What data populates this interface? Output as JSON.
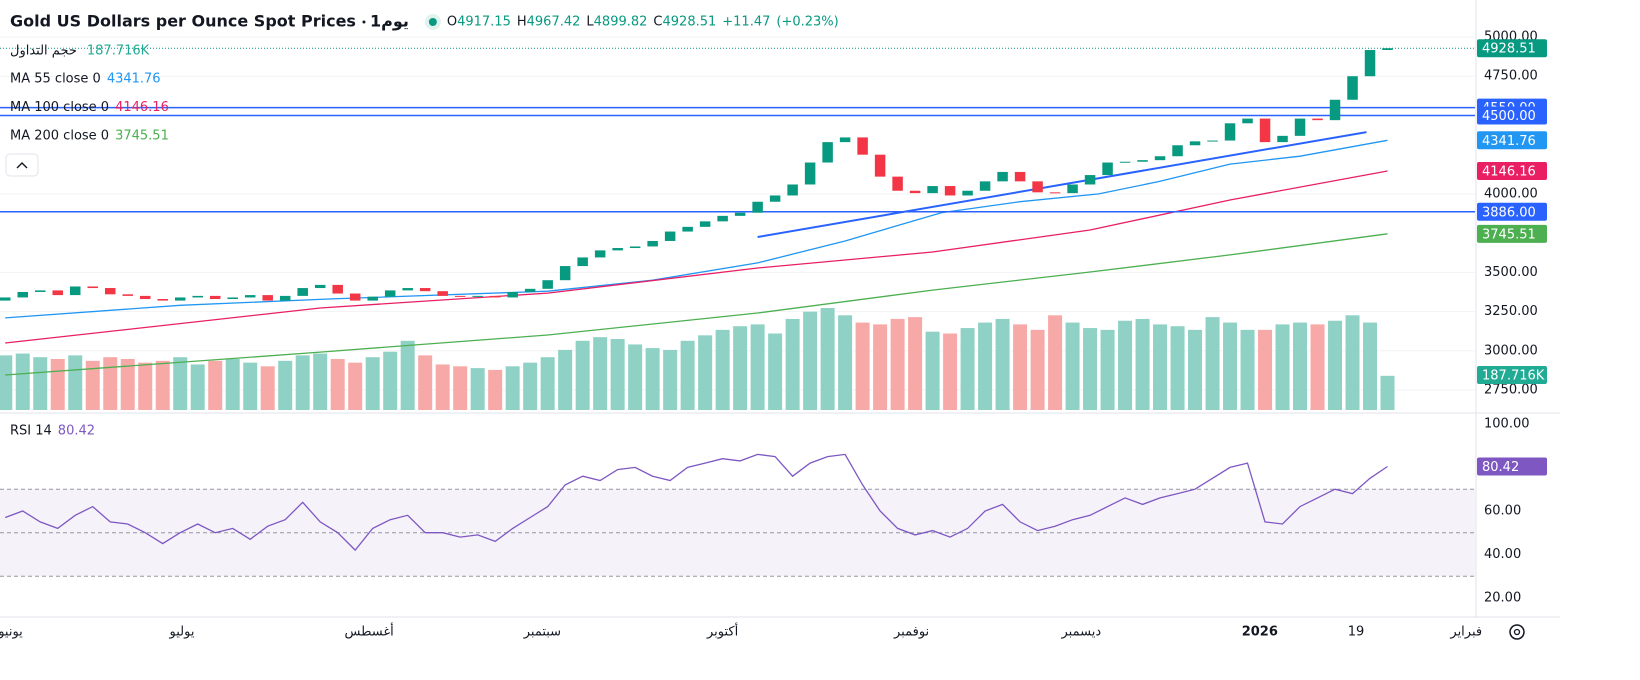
{
  "chart_data": {
    "type": "candlestick",
    "title": "Gold US Dollars per Ounce Spot Prices",
    "interval": "1يوم",
    "header": {
      "o": "O",
      "h": "H",
      "l": "L",
      "c": "C"
    },
    "last_high": 4967.42,
    "last_low": 4899.82,
    "change": {
      "value": 11.47,
      "label": "+11.47"
    },
    "change_pct": {
      "value": 0.23,
      "label": "(+0.23%)"
    },
    "xlim": [
      -0.3,
      84
    ],
    "xticks": [
      {
        "value": 0.3,
        "label": "يونيو"
      },
      {
        "value": 10.1,
        "label": "يوليو"
      },
      {
        "value": 20.8,
        "label": "أغسطس"
      },
      {
        "value": 30.7,
        "label": "سبتمبر"
      },
      {
        "value": 41,
        "label": "أكتوبر"
      },
      {
        "value": 51.8,
        "label": "نوفمبر"
      },
      {
        "value": 61.5,
        "label": "ديسمبر"
      },
      {
        "value": 71.7,
        "label": "2026",
        "bold": true
      },
      {
        "value": 77.2,
        "label": "19"
      },
      {
        "value": 83.5,
        "label": "فبراير"
      }
    ],
    "ylim": [
      2622.7,
      5235.8
    ],
    "yticks": [
      {
        "value": 5000,
        "label": "5000.00"
      },
      {
        "value": 4750,
        "label": "4750.00"
      },
      {
        "value": 4000,
        "label": "4000.00"
      },
      {
        "value": 3500,
        "label": "3500.00"
      },
      {
        "value": 3250,
        "label": "3250.00"
      },
      {
        "value": 3000,
        "label": "3000.00"
      },
      {
        "value": 2750,
        "label": "2750.00"
      }
    ],
    "grid": true,
    "candles": {
      "up_color": "#089981",
      "down_color": "#f23645",
      "open": [
        3320,
        3340,
        3375,
        3385,
        3355,
        3410,
        3400,
        3360,
        3350,
        3330,
        3320,
        3340,
        3350,
        3330,
        3340,
        3355,
        3320,
        3350,
        3400,
        3420,
        3365,
        3320,
        3345,
        3385,
        3400,
        3380,
        3350,
        3345,
        3350,
        3340,
        3375,
        3395,
        3450,
        3540,
        3595,
        3640,
        3655,
        3665,
        3700,
        3760,
        3790,
        3825,
        3860,
        3880,
        3950,
        3990,
        4060,
        4200,
        4330,
        4360,
        4250,
        4110,
        4020,
        4005,
        4050,
        3990,
        4020,
        4080,
        4140,
        4080,
        4010,
        4005,
        4060,
        4120,
        4200,
        4205,
        4215,
        4240,
        4310,
        4335,
        4340,
        4450,
        4480,
        4330,
        4370,
        4480,
        4470,
        4600,
        4750,
        4917.15
      ],
      "close": [
        3340,
        3375,
        3385,
        3355,
        3410,
        3400,
        3360,
        3350,
        3330,
        3320,
        3340,
        3350,
        3330,
        3340,
        3355,
        3320,
        3350,
        3400,
        3420,
        3365,
        3320,
        3345,
        3385,
        3400,
        3380,
        3350,
        3345,
        3350,
        3340,
        3375,
        3395,
        3450,
        3540,
        3595,
        3640,
        3655,
        3665,
        3700,
        3760,
        3790,
        3825,
        3860,
        3880,
        3950,
        3990,
        4060,
        4200,
        4330,
        4360,
        4250,
        4110,
        4020,
        4005,
        4050,
        3990,
        4020,
        4080,
        4140,
        4080,
        4010,
        4005,
        4060,
        4120,
        4200,
        4205,
        4215,
        4240,
        4310,
        4335,
        4340,
        4450,
        4480,
        4330,
        4370,
        4480,
        4470,
        4600,
        4750,
        4917,
        4928.51
      ]
    },
    "volume": {
      "name": "حجم التداول",
      "up_color": "#8fd2c5",
      "down_color": "#f7a9a7",
      "label_color": "#22ab94",
      "vlim": [
        0,
        560
      ],
      "last_label": "187.716K",
      "values": [
        300,
        310,
        290,
        280,
        300,
        270,
        290,
        280,
        260,
        270,
        290,
        250,
        270,
        280,
        260,
        240,
        270,
        300,
        310,
        280,
        260,
        290,
        320,
        380,
        300,
        250,
        240,
        230,
        220,
        240,
        260,
        290,
        330,
        380,
        400,
        390,
        360,
        340,
        330,
        380,
        410,
        440,
        460,
        470,
        420,
        500,
        540,
        560,
        520,
        480,
        470,
        500,
        510,
        430,
        420,
        450,
        480,
        500,
        470,
        440,
        520,
        480,
        450,
        440,
        490,
        500,
        470,
        460,
        440,
        510,
        480,
        440,
        440,
        470,
        480,
        470,
        490,
        520,
        480,
        187.716
      ]
    },
    "ma": [
      {
        "name": "MA 55 close 0",
        "color": "#2196f3",
        "x": [
          0,
          10,
          18.5,
          31,
          37,
          43,
          48,
          53.5,
          58,
          62.5,
          66,
          70,
          74,
          79
        ],
        "values": [
          3210,
          3290,
          3330,
          3380,
          3450,
          3560,
          3700,
          3880,
          3950,
          4000,
          4080,
          4190,
          4240,
          4341.76
        ]
      },
      {
        "name": "MA 100 close 0",
        "color": "#e91e63",
        "x": [
          0,
          18,
          31,
          43,
          53,
          62,
          70,
          79
        ],
        "values": [
          3050,
          3273,
          3368,
          3528,
          3630,
          3770,
          3961,
          4146.16
        ]
      },
      {
        "name": "MA 200 close 0",
        "color": "#4caf50",
        "x": [
          0,
          18,
          31,
          43,
          53,
          62,
          70,
          79
        ],
        "values": [
          2846,
          2992,
          3101,
          3241,
          3387,
          3502,
          3611,
          3745.51
        ]
      }
    ],
    "hlines": {
      "color": "#2962ff",
      "lines": [
        {
          "value": 4550,
          "label": "4550.00"
        },
        {
          "value": 4500,
          "label": "4500.00"
        },
        {
          "value": 3886,
          "label": "3886.00"
        }
      ]
    },
    "trendline": {
      "color": "#2962ff",
      "x": [
        43,
        77.8
      ],
      "values": [
        3725,
        4394
      ]
    },
    "rsi": {
      "name": "RSI 14",
      "color": "#7e57c2",
      "ylim": [
        12.2,
        104.1
      ],
      "yticks": [
        {
          "value": 100,
          "label": "100.00"
        },
        {
          "value": 60,
          "label": "60.00"
        },
        {
          "value": 40,
          "label": "40.00"
        },
        {
          "value": 20,
          "label": "20.00"
        }
      ],
      "bands": [
        30,
        50,
        70
      ],
      "values": [
        57,
        60,
        55,
        52,
        58,
        62,
        55,
        54,
        50,
        45,
        50,
        54,
        50,
        52,
        47,
        53,
        56,
        64,
        55,
        50,
        42,
        52,
        56,
        58,
        50,
        50,
        48,
        49,
        46,
        52,
        57,
        62,
        72,
        76,
        74,
        79,
        80,
        76,
        74,
        80,
        82,
        84,
        83,
        86,
        85,
        76,
        82,
        85,
        86,
        72,
        60,
        52,
        49,
        51,
        48,
        52,
        60,
        63,
        55,
        51,
        53,
        56,
        58,
        62,
        66,
        63,
        66,
        68,
        70,
        75,
        80,
        82,
        55,
        54,
        62,
        66,
        70,
        68,
        75,
        80.42
      ]
    }
  }
}
